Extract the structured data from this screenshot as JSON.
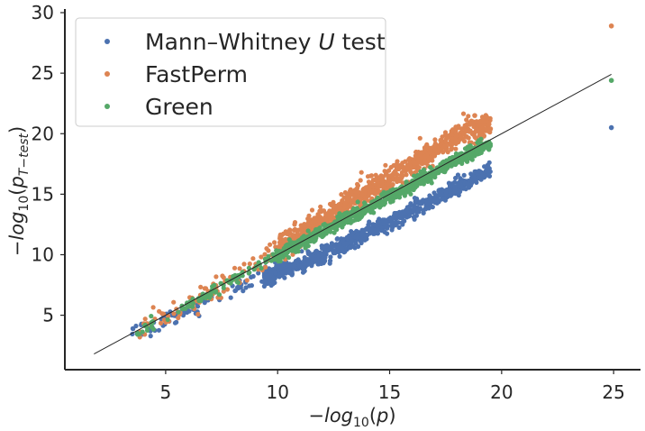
{
  "chart_data": {
    "type": "scatter",
    "title": "",
    "xlabel": "−log10(p)",
    "ylabel": "−log10(pT−test)",
    "xlim": [
      0.5,
      26.2
    ],
    "ylim": [
      0.5,
      30.3
    ],
    "xticks": [
      5,
      10,
      15,
      20,
      25
    ],
    "yticks": [
      5,
      10,
      15,
      20,
      25,
      30
    ],
    "grid": false,
    "legend_position": "top-left",
    "reference_line": {
      "x": [
        1.8,
        24.9
      ],
      "y": [
        1.8,
        24.9
      ],
      "color": "#262626"
    },
    "series": [
      {
        "name": "Mann–Whitney U test",
        "color": "#4c72b0",
        "trend": {
          "x": [
            3.5,
            6,
            8,
            10,
            12,
            14,
            16,
            18,
            19.5
          ],
          "y": [
            3.5,
            5.3,
            7.0,
            8.5,
            10.0,
            11.8,
            13.6,
            15.5,
            17.0
          ]
        },
        "spread": 0.35,
        "outliers": [
          [
            24.9,
            20.5
          ],
          [
            18.5,
            15.8
          ],
          [
            17.2,
            15.3
          ]
        ]
      },
      {
        "name": "FastPerm",
        "color": "#dd8452",
        "trend": {
          "x": [
            3.8,
            6,
            8,
            10,
            12,
            14,
            16,
            18,
            19.5
          ],
          "y": [
            3.8,
            5.8,
            8.2,
            10.5,
            12.8,
            15.2,
            17.4,
            19.8,
            20.8
          ]
        },
        "spread": 0.5,
        "outliers": [
          [
            24.9,
            28.9
          ],
          [
            19.2,
            21.0
          ],
          [
            18.8,
            21.5
          ],
          [
            19.5,
            20.4
          ]
        ]
      },
      {
        "name": "Green",
        "color": "#55a868",
        "trend": {
          "x": [
            3.7,
            6,
            8,
            10,
            12,
            14,
            16,
            17.5,
            19.5
          ],
          "y": [
            3.7,
            5.8,
            7.9,
            9.9,
            11.9,
            13.8,
            15.8,
            17.3,
            19.2
          ]
        },
        "spread": 0.25,
        "outliers": [
          [
            24.9,
            24.4
          ],
          [
            18.6,
            19.0
          ],
          [
            18.9,
            18.5
          ]
        ]
      }
    ]
  }
}
